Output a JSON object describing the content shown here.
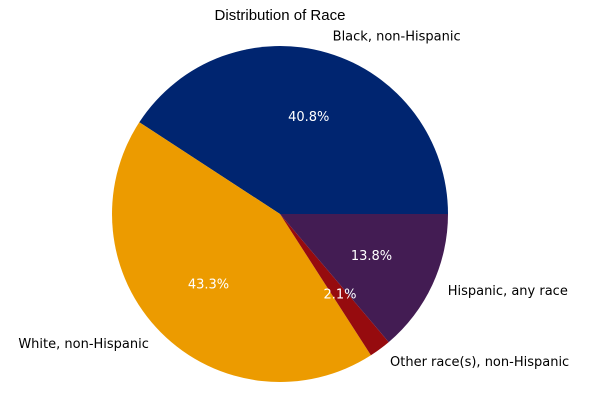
{
  "chart_data": {
    "type": "pie",
    "title": "Distribution of Race",
    "start_angle_deg": 0,
    "direction": "counterclockwise",
    "slices": [
      {
        "label": "Black, non-Hispanic",
        "value": 40.8,
        "pct_label": "40.8%",
        "color": "#002570"
      },
      {
        "label": "White, non-Hispanic",
        "value": 43.3,
        "pct_label": "43.3%",
        "color": "#ec9b00"
      },
      {
        "label": "Other race(s), non-Hispanic",
        "value": 2.1,
        "pct_label": "2.1%",
        "color": "#960b0e"
      },
      {
        "label": "Hispanic, any race",
        "value": 13.8,
        "pct_label": "13.8%",
        "color": "#431c53"
      }
    ]
  }
}
